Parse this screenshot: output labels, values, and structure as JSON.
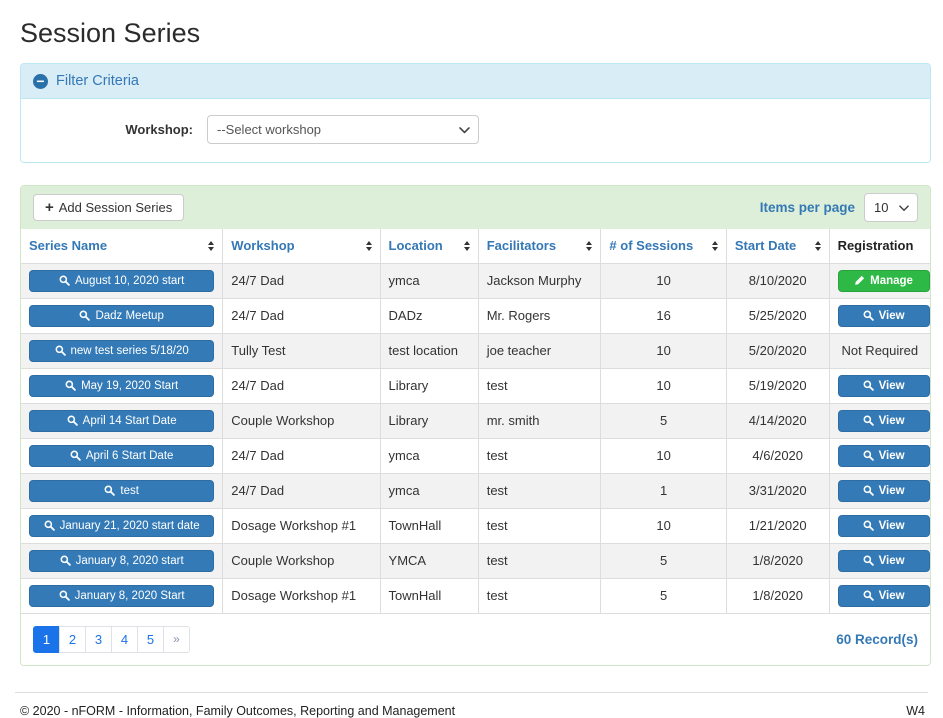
{
  "page": {
    "title": "Session Series"
  },
  "filter": {
    "title": "Filter Criteria",
    "workshop_label": "Workshop:",
    "workshop_value": "--Select workshop"
  },
  "toolbar": {
    "add_label": "Add Session Series",
    "items_per_page_label": "Items per page",
    "items_per_page_value": "10"
  },
  "table": {
    "headers": [
      {
        "label": "Series Name",
        "sortable": true
      },
      {
        "label": "Workshop",
        "sortable": true
      },
      {
        "label": "Location",
        "sortable": true
      },
      {
        "label": "Facilitators",
        "sortable": true
      },
      {
        "label": "# of Sessions",
        "sortable": true
      },
      {
        "label": "Start Date",
        "sortable": true
      },
      {
        "label": "Registration",
        "sortable": false
      }
    ],
    "rows": [
      {
        "series_name": "August 10, 2020 start",
        "workshop": "24/7 Dad",
        "location": "ymca",
        "facilitators": "Jackson Murphy",
        "sessions": "10",
        "start_date": "8/10/2020",
        "registration": "Manage",
        "registration_type": "manage"
      },
      {
        "series_name": "Dadz Meetup",
        "workshop": "24/7 Dad",
        "location": "DADz",
        "facilitators": "Mr. Rogers",
        "sessions": "16",
        "start_date": "5/25/2020",
        "registration": "View",
        "registration_type": "view"
      },
      {
        "series_name": "new test series 5/18/20",
        "workshop": "Tully Test",
        "location": "test location",
        "facilitators": "joe teacher",
        "sessions": "10",
        "start_date": "5/20/2020",
        "registration": "Not Required",
        "registration_type": "text"
      },
      {
        "series_name": "May 19, 2020 Start",
        "workshop": "24/7 Dad",
        "location": "Library",
        "facilitators": "test",
        "sessions": "10",
        "start_date": "5/19/2020",
        "registration": "View",
        "registration_type": "view"
      },
      {
        "series_name": "April 14 Start Date",
        "workshop": "Couple Workshop",
        "location": "Library",
        "facilitators": "mr. smith",
        "sessions": "5",
        "start_date": "4/14/2020",
        "registration": "View",
        "registration_type": "view"
      },
      {
        "series_name": "April 6 Start Date",
        "workshop": "24/7 Dad",
        "location": "ymca",
        "facilitators": "test",
        "sessions": "10",
        "start_date": "4/6/2020",
        "registration": "View",
        "registration_type": "view"
      },
      {
        "series_name": "test",
        "workshop": "24/7 Dad",
        "location": "ymca",
        "facilitators": "test",
        "sessions": "1",
        "start_date": "3/31/2020",
        "registration": "View",
        "registration_type": "view"
      },
      {
        "series_name": "January 21, 2020 start date",
        "workshop": "Dosage Workshop #1",
        "location": "TownHall",
        "facilitators": "test",
        "sessions": "10",
        "start_date": "1/21/2020",
        "registration": "View",
        "registration_type": "view"
      },
      {
        "series_name": "January 8, 2020 start",
        "workshop": "Couple Workshop",
        "location": "YMCA",
        "facilitators": "test",
        "sessions": "5",
        "start_date": "1/8/2020",
        "registration": "View",
        "registration_type": "view"
      },
      {
        "series_name": "January 8, 2020 Start",
        "workshop": "Dosage Workshop #1",
        "location": "TownHall",
        "facilitators": "test",
        "sessions": "5",
        "start_date": "1/8/2020",
        "registration": "View",
        "registration_type": "view"
      }
    ]
  },
  "pagination": {
    "pages": [
      "1",
      "2",
      "3",
      "4",
      "5",
      "»"
    ],
    "active": "1",
    "record_count": "60 Record(s)"
  },
  "footer": {
    "copyright": "© 2020 - nFORM - Information, Family Outcomes, Reporting and Management",
    "environment": "W4"
  },
  "colors": {
    "primary_blue": "#337ab7",
    "primary_blue_border": "#2e6da4",
    "header_text_blue": "#3478b6",
    "success_green": "#2eb845",
    "success_green_border": "#28a33d",
    "info_bg": "#d9edf7",
    "info_border": "#bce8f1",
    "toolbar_bg": "#ddefd8",
    "panel_border": "#d0e6c8",
    "stripe": "#f2f2f2",
    "pagination_active": "#1a73e8"
  }
}
